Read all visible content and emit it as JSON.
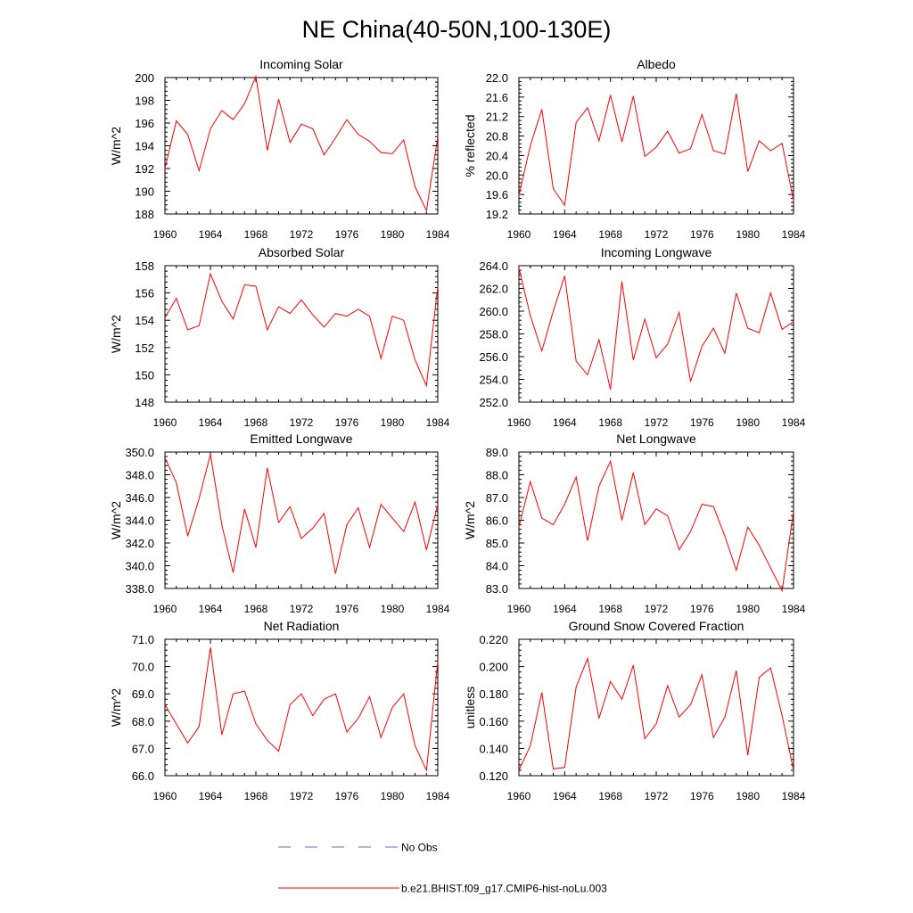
{
  "title": "NE China(40-50N,100-130E)",
  "x_ticks": [
    "1960",
    "1964",
    "1968",
    "1972",
    "1976",
    "1980",
    "1984"
  ],
  "legend": [
    {
      "label": "No Obs",
      "color": "#6a6ad8",
      "style": "dashed"
    },
    {
      "label": "b.e21.BHIST.f09_g17.CMIP6-hist-noLu.003",
      "color": "#ff0000",
      "style": "solid"
    }
  ],
  "chart_data": [
    {
      "type": "line",
      "title": "Incoming Solar",
      "ylabel": "W/m^2",
      "ylim": [
        188,
        200
      ],
      "yticks": [
        "188",
        "190",
        "192",
        "194",
        "196",
        "198",
        "200"
      ],
      "x": [
        1960,
        1961,
        1962,
        1963,
        1964,
        1965,
        1966,
        1967,
        1968,
        1969,
        1970,
        1971,
        1972,
        1973,
        1974,
        1975,
        1976,
        1977,
        1978,
        1979,
        1980,
        1981,
        1982,
        1983,
        1984
      ],
      "series": [
        {
          "values": [
            192.0,
            196.2,
            195.0,
            191.8,
            195.5,
            197.1,
            196.3,
            197.7,
            200.1,
            193.6,
            198.1,
            194.3,
            195.9,
            195.5,
            193.2,
            194.7,
            196.3,
            195.0,
            194.4,
            193.4,
            193.3,
            194.5,
            190.4,
            188.3,
            194.8
          ]
        }
      ]
    },
    {
      "type": "line",
      "title": "Albedo",
      "ylabel": "% reflected",
      "ylim": [
        19.2,
        22.0
      ],
      "yticks": [
        "19.2",
        "19.6",
        "20.0",
        "20.4",
        "20.8",
        "21.2",
        "21.6",
        "22.0"
      ],
      "x": [
        1960,
        1961,
        1962,
        1963,
        1964,
        1965,
        1966,
        1967,
        1968,
        1969,
        1970,
        1971,
        1972,
        1973,
        1974,
        1975,
        1976,
        1977,
        1978,
        1979,
        1980,
        1981,
        1982,
        1983,
        1984
      ],
      "series": [
        {
          "values": [
            19.58,
            20.6,
            21.35,
            19.72,
            19.38,
            21.08,
            21.38,
            20.7,
            21.64,
            20.68,
            21.62,
            20.38,
            20.57,
            20.9,
            20.45,
            20.54,
            21.24,
            20.5,
            20.43,
            21.67,
            20.07,
            20.7,
            20.5,
            20.65,
            19.47
          ]
        }
      ]
    },
    {
      "type": "line",
      "title": "Absorbed Solar",
      "ylabel": "W/m^2",
      "ylim": [
        148,
        158
      ],
      "yticks": [
        "148",
        "150",
        "152",
        "154",
        "156",
        "158"
      ],
      "x": [
        1960,
        1961,
        1962,
        1963,
        1964,
        1965,
        1966,
        1967,
        1968,
        1969,
        1970,
        1971,
        1972,
        1973,
        1974,
        1975,
        1976,
        1977,
        1978,
        1979,
        1980,
        1981,
        1982,
        1983,
        1984
      ],
      "series": [
        {
          "values": [
            154.2,
            155.6,
            153.3,
            153.6,
            157.4,
            155.4,
            154.1,
            156.6,
            156.5,
            153.3,
            155.0,
            154.5,
            155.5,
            154.4,
            153.5,
            154.5,
            154.3,
            154.8,
            154.3,
            151.2,
            154.3,
            154.0,
            151.1,
            149.2,
            156.5
          ]
        }
      ]
    },
    {
      "type": "line",
      "title": "Incoming Longwave",
      "ylabel": "",
      "ylim": [
        252.0,
        264.0
      ],
      "yticks": [
        "252.0",
        "254.0",
        "256.0",
        "258.0",
        "260.0",
        "262.0",
        "264.0"
      ],
      "x": [
        1960,
        1961,
        1962,
        1963,
        1964,
        1965,
        1966,
        1967,
        1968,
        1969,
        1970,
        1971,
        1972,
        1973,
        1974,
        1975,
        1976,
        1977,
        1978,
        1979,
        1980,
        1981,
        1982,
        1983,
        1984
      ],
      "series": [
        {
          "values": [
            263.8,
            259.6,
            256.5,
            260.0,
            263.1,
            255.6,
            254.4,
            257.5,
            253.1,
            262.6,
            255.7,
            259.3,
            255.9,
            257.1,
            259.9,
            253.8,
            256.9,
            258.5,
            256.3,
            261.6,
            258.5,
            258.1,
            261.6,
            258.4,
            259.1
          ]
        }
      ]
    },
    {
      "type": "line",
      "title": "Emitted Longwave",
      "ylabel": "W/m^2",
      "ylim": [
        338.0,
        350.0
      ],
      "yticks": [
        "338.0",
        "340.0",
        "342.0",
        "344.0",
        "346.0",
        "348.0",
        "350.0"
      ],
      "x": [
        1960,
        1961,
        1962,
        1963,
        1964,
        1965,
        1966,
        1967,
        1968,
        1969,
        1970,
        1971,
        1972,
        1973,
        1974,
        1975,
        1976,
        1977,
        1978,
        1979,
        1980,
        1981,
        1982,
        1983,
        1984
      ],
      "series": [
        {
          "values": [
            349.5,
            347.3,
            342.6,
            345.9,
            349.8,
            343.6,
            339.4,
            345.0,
            341.6,
            348.6,
            343.8,
            345.2,
            342.4,
            343.3,
            344.6,
            339.3,
            343.6,
            345.1,
            341.6,
            345.4,
            344.2,
            343.0,
            345.6,
            341.4,
            345.4
          ]
        }
      ]
    },
    {
      "type": "line",
      "title": "Net Longwave",
      "ylabel": "W/m^2",
      "ylim": [
        83.0,
        89.0
      ],
      "yticks": [
        "83.0",
        "84.0",
        "85.0",
        "86.0",
        "87.0",
        "88.0",
        "89.0"
      ],
      "x": [
        1960,
        1961,
        1962,
        1963,
        1964,
        1965,
        1966,
        1967,
        1968,
        1969,
        1970,
        1971,
        1972,
        1973,
        1974,
        1975,
        1976,
        1977,
        1978,
        1979,
        1980,
        1981,
        1982,
        1983,
        1984
      ],
      "series": [
        {
          "values": [
            85.7,
            87.7,
            86.1,
            85.8,
            86.7,
            87.9,
            85.1,
            87.5,
            88.6,
            86.0,
            88.1,
            85.8,
            86.5,
            86.2,
            84.7,
            85.5,
            86.7,
            86.6,
            85.3,
            83.8,
            85.7,
            84.9,
            83.9,
            82.9,
            86.4
          ]
        }
      ]
    },
    {
      "type": "line",
      "title": "Net Radiation",
      "ylabel": "W/m^2",
      "ylim": [
        66.0,
        71.0
      ],
      "yticks": [
        "66.0",
        "67.0",
        "68.0",
        "69.0",
        "70.0",
        "71.0"
      ],
      "x": [
        1960,
        1961,
        1962,
        1963,
        1964,
        1965,
        1966,
        1967,
        1968,
        1969,
        1970,
        1971,
        1972,
        1973,
        1974,
        1975,
        1976,
        1977,
        1978,
        1979,
        1980,
        1981,
        1982,
        1983,
        1984
      ],
      "series": [
        {
          "values": [
            68.6,
            67.9,
            67.2,
            67.8,
            70.7,
            67.5,
            69.0,
            69.1,
            67.9,
            67.3,
            66.9,
            68.6,
            69.0,
            68.2,
            68.8,
            69.0,
            67.6,
            68.1,
            68.9,
            67.4,
            68.5,
            69.0,
            67.1,
            66.2,
            70.2
          ]
        }
      ]
    },
    {
      "type": "line",
      "title": "Ground Snow Covered Fraction",
      "ylabel": "unitless",
      "ylim": [
        0.12,
        0.22
      ],
      "yticks": [
        "0.120",
        "0.140",
        "0.160",
        "0.180",
        "0.200",
        "0.220"
      ],
      "x": [
        1960,
        1961,
        1962,
        1963,
        1964,
        1965,
        1966,
        1967,
        1968,
        1969,
        1970,
        1971,
        1972,
        1973,
        1974,
        1975,
        1976,
        1977,
        1978,
        1979,
        1980,
        1981,
        1982,
        1983,
        1984
      ],
      "series": [
        {
          "values": [
            0.124,
            0.142,
            0.181,
            0.125,
            0.126,
            0.185,
            0.206,
            0.162,
            0.189,
            0.176,
            0.201,
            0.147,
            0.158,
            0.186,
            0.163,
            0.172,
            0.194,
            0.148,
            0.163,
            0.197,
            0.135,
            0.192,
            0.199,
            0.164,
            0.124
          ]
        }
      ]
    }
  ]
}
